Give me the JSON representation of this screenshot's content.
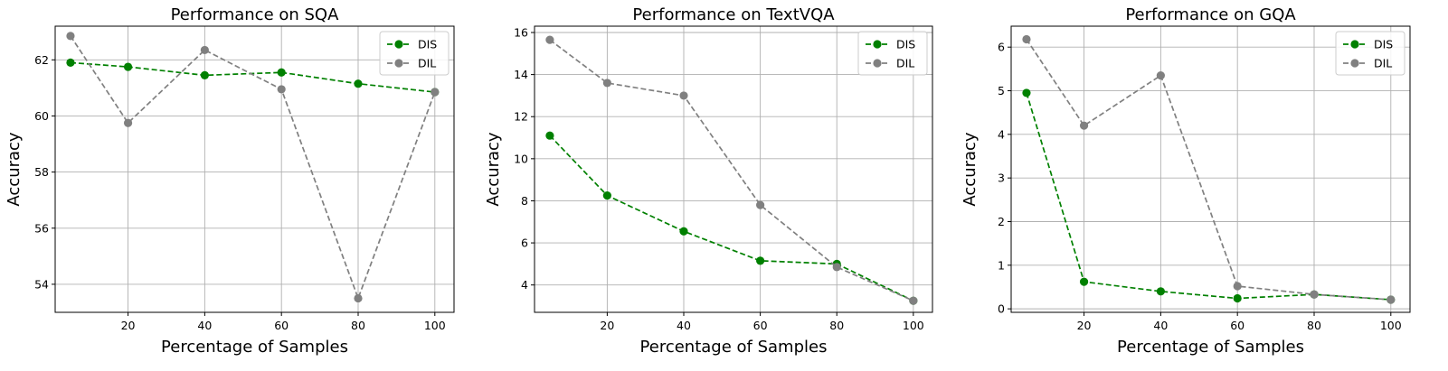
{
  "chart_data": [
    {
      "type": "line",
      "title": "Performance on SQA",
      "xlabel": "Percentage of Samples",
      "ylabel": "Accuracy",
      "x": [
        5,
        20,
        40,
        60,
        80,
        100
      ],
      "xticks": [
        20,
        40,
        60,
        80,
        100
      ],
      "xlim": [
        1,
        105
      ],
      "ylim": [
        53.0,
        63.2
      ],
      "yticks": [
        54,
        56,
        58,
        60,
        62
      ],
      "grid": true,
      "legend_position": "top-right",
      "series": [
        {
          "name": "DIS",
          "color": "#008000",
          "values": [
            61.9,
            61.75,
            61.45,
            61.55,
            61.15,
            60.85
          ]
        },
        {
          "name": "DIL",
          "color": "#808080",
          "values": [
            62.85,
            59.75,
            62.35,
            60.95,
            53.5,
            60.85
          ]
        }
      ]
    },
    {
      "type": "line",
      "title": "Performance on TextVQA",
      "xlabel": "Percentage of Samples",
      "ylabel": "Accuracy",
      "x": [
        5,
        20,
        40,
        60,
        80,
        100
      ],
      "xticks": [
        20,
        40,
        60,
        80,
        100
      ],
      "xlim": [
        1,
        105
      ],
      "ylim": [
        2.7,
        16.3
      ],
      "yticks": [
        4,
        6,
        8,
        10,
        12,
        14,
        16
      ],
      "grid": true,
      "legend_position": "top-right",
      "series": [
        {
          "name": "DIS",
          "color": "#008000",
          "values": [
            11.1,
            8.25,
            6.55,
            5.15,
            5.0,
            3.25
          ]
        },
        {
          "name": "DIL",
          "color": "#808080",
          "values": [
            15.65,
            13.6,
            13.0,
            7.8,
            4.85,
            3.25
          ]
        }
      ]
    },
    {
      "type": "line",
      "title": "Performance on GQA",
      "xlabel": "Percentage of Samples",
      "ylabel": "Accuracy",
      "x": [
        5,
        20,
        40,
        60,
        80,
        100
      ],
      "xticks": [
        20,
        40,
        60,
        80,
        100
      ],
      "xlim": [
        1,
        105
      ],
      "ylim": [
        -0.08,
        6.48
      ],
      "yticks": [
        0,
        1,
        2,
        3,
        4,
        5,
        6
      ],
      "grid": true,
      "legend_position": "top-right",
      "series": [
        {
          "name": "DIS",
          "color": "#008000",
          "values": [
            4.95,
            0.62,
            0.4,
            0.24,
            0.33,
            0.21
          ]
        },
        {
          "name": "DIL",
          "color": "#808080",
          "values": [
            6.18,
            4.2,
            5.35,
            0.52,
            0.33,
            0.21
          ]
        }
      ]
    }
  ]
}
